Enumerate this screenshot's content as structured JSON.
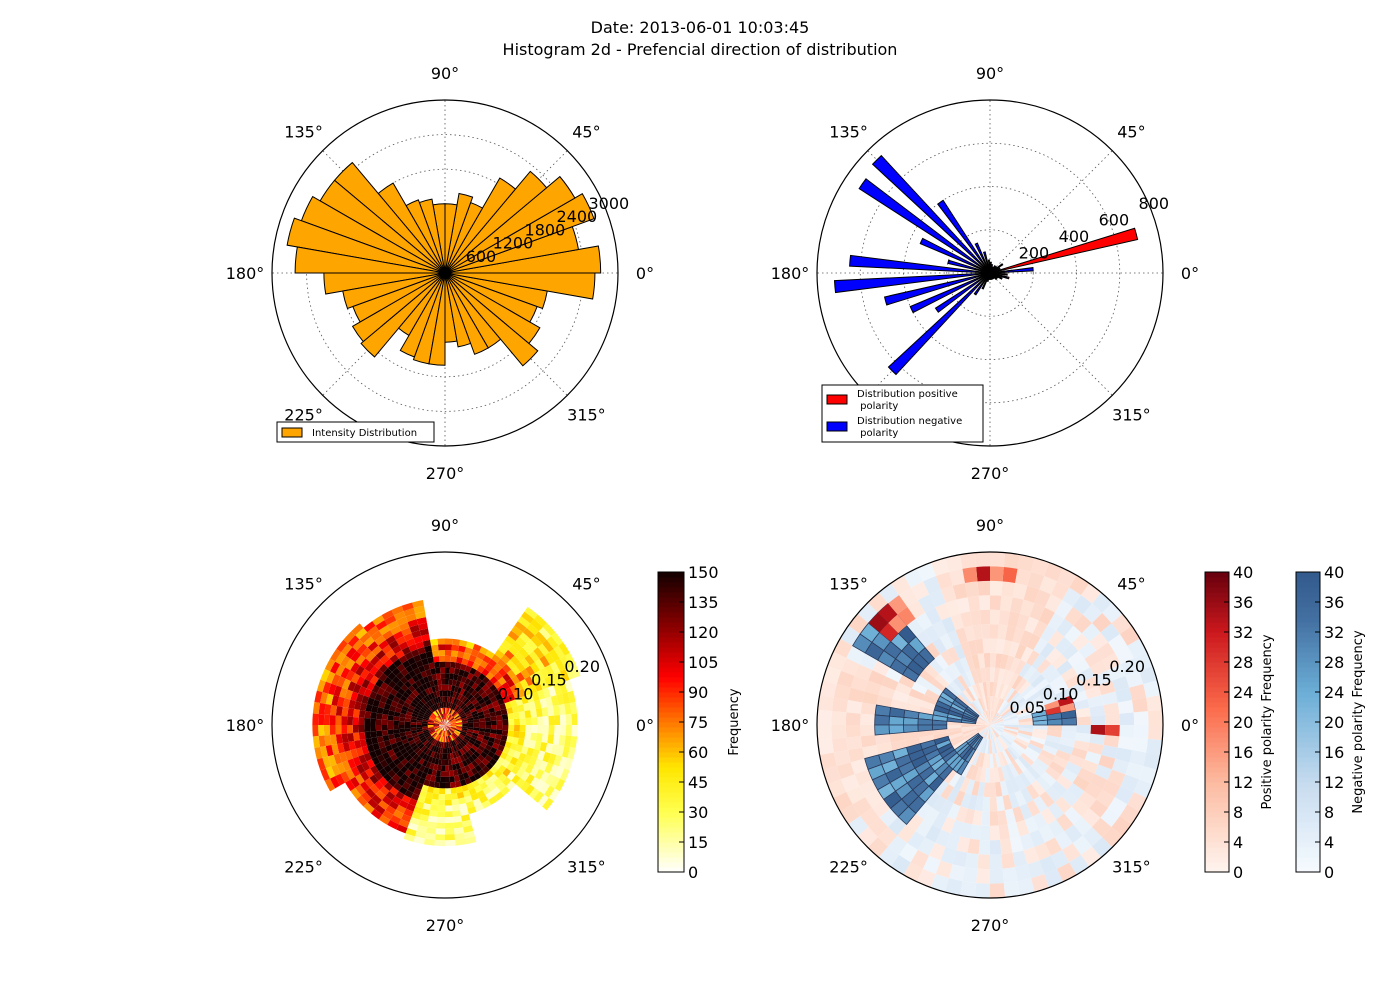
{
  "figure": {
    "title_line1": "Date: 2013-06-01 10:03:45",
    "title_line2": "Histogram 2d - Prefencial direction of distribution"
  },
  "angle_labels": [
    "0°",
    "45°",
    "90°",
    "135°",
    "180°",
    "225°",
    "270°",
    "315°"
  ],
  "colors": {
    "intensity": "#ffa500",
    "positive": "#ff0000",
    "negative": "#0000ff"
  },
  "chart_data": [
    {
      "id": "intensity",
      "type": "bar",
      "projection": "polar",
      "rmax": 3000,
      "radial_ticks": [
        "600",
        "1200",
        "1800",
        "2400",
        "3000"
      ],
      "legend": [
        "Intensity Distribution"
      ],
      "legend_loc": "lower-left",
      "series": [
        {
          "name": "Intensity Distribution",
          "color": "#ffa500",
          "theta_deg": [
            5,
            15,
            25,
            35,
            45,
            55,
            65,
            75,
            85,
            95,
            105,
            115,
            125,
            135,
            145,
            155,
            165,
            175,
            185,
            195,
            205,
            215,
            225,
            235,
            245,
            255,
            265,
            275,
            285,
            295,
            305,
            315,
            325,
            335,
            345,
            355
          ],
          "values": [
            2700,
            2350,
            2750,
            2600,
            2300,
            1900,
            1300,
            1400,
            1200,
            1200,
            1300,
            1350,
            1800,
            2500,
            2500,
            2650,
            2780,
            2600,
            2100,
            1800,
            1700,
            1850,
            1900,
            1250,
            1550,
            1600,
            1600,
            1200,
            1300,
            1500,
            1500,
            2100,
            1900,
            1700,
            1800,
            2600
          ]
        }
      ]
    },
    {
      "id": "polarity",
      "type": "bar",
      "projection": "polar",
      "rmax": 800,
      "radial_ticks": [
        "200",
        "400",
        "600",
        "800"
      ],
      "legend": [
        "Distribution positive\n polarity",
        "Distribution negative\n polarity"
      ],
      "legend_loc": "lower-left",
      "series": [
        {
          "name": "Distribution positive\n polarity",
          "color": "#ff0000",
          "theta_deg": [
            15,
            5,
            355,
            345,
            35,
            55,
            135,
            195,
            215,
            285,
            315,
            325,
            335
          ],
          "values": [
            700,
            100,
            80,
            90,
            70,
            40,
            40,
            30,
            20,
            25,
            30,
            40,
            60
          ]
        },
        {
          "name": "Distribution negative\n polarity",
          "color": "#0000ff",
          "theta_deg": [
            5,
            135,
            145,
            155,
            165,
            175,
            185,
            195,
            205,
            215,
            225,
            235,
            245,
            125,
            115,
            105,
            95,
            85,
            75,
            65,
            45,
            25,
            345,
            335,
            325,
            315,
            305,
            295,
            285,
            275,
            265,
            255
          ],
          "values": [
            200,
            740,
            720,
            350,
            200,
            650,
            720,
            500,
            400,
            300,
            640,
            120,
            80,
            400,
            150,
            100,
            60,
            50,
            40,
            30,
            40,
            50,
            80,
            60,
            40,
            40,
            30,
            30,
            30,
            30,
            30,
            40
          ]
        }
      ]
    },
    {
      "id": "hist2d",
      "type": "heatmap",
      "projection": "polar",
      "rmax": 0.24,
      "radial_ticks": [
        "0.10",
        "0.15",
        "0.20"
      ],
      "colorbar": {
        "label": "Frequency",
        "vmin": 0,
        "vmax": 150,
        "ticks": [
          "0",
          "15",
          "30",
          "45",
          "60",
          "75",
          "90",
          "105",
          "120",
          "135",
          "150"
        ]
      },
      "theta_step_deg": 5,
      "radial_edges": [
        0,
        0.008,
        0.016,
        0.024,
        0.032,
        0.04,
        0.048,
        0.056,
        0.064,
        0.072,
        0.08,
        0.088,
        0.096,
        0.104,
        0.112,
        0.12,
        0.128,
        0.136,
        0.144,
        0.152,
        0.16,
        0.168,
        0.176,
        0.184,
        0.192,
        0.2
      ]
    },
    {
      "id": "hist2d_polarity",
      "type": "heatmap",
      "projection": "polar",
      "rmax": 0.24,
      "radial_ticks": [
        "0.05",
        "0.10",
        "0.15",
        "0.20"
      ],
      "colorbars": [
        {
          "label": "Positive polarity Frequency",
          "vmin": 0,
          "vmax": 40,
          "ticks": [
            "0",
            "4",
            "8",
            "12",
            "16",
            "20",
            "24",
            "28",
            "32",
            "36",
            "40"
          ]
        },
        {
          "label": "Negative polarity Frequency",
          "vmin": 0,
          "vmax": 40,
          "ticks": [
            "0",
            "4",
            "8",
            "12",
            "16",
            "20",
            "24",
            "28",
            "32",
            "36",
            "40"
          ]
        }
      ],
      "theta_step_deg": 5,
      "radial_edges": [
        0,
        0.02,
        0.04,
        0.06,
        0.08,
        0.1,
        0.12,
        0.14,
        0.16,
        0.18,
        0.2,
        0.22,
        0.24
      ]
    }
  ]
}
